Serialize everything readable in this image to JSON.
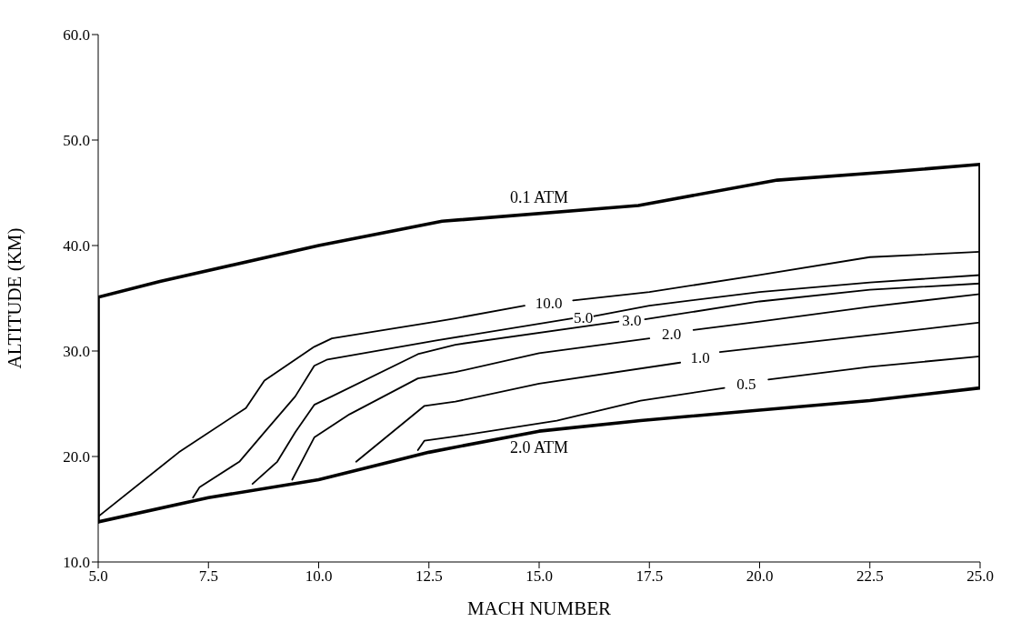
{
  "chart_data": {
    "type": "line",
    "xlabel": "MACH NUMBER",
    "ylabel": "ALTITUDE (KM)",
    "xlim": [
      5,
      25
    ],
    "ylim": [
      10,
      60
    ],
    "xticks": [
      {
        "value": 5,
        "label": "5.0"
      },
      {
        "value": 7.5,
        "label": "7.5"
      },
      {
        "value": 10,
        "label": "10.0"
      },
      {
        "value": 12.5,
        "label": "12.5"
      },
      {
        "value": 15,
        "label": "15.0"
      },
      {
        "value": 17.5,
        "label": "17.5"
      },
      {
        "value": 20,
        "label": "20.0"
      },
      {
        "value": 22.5,
        "label": "22.5"
      },
      {
        "value": 25,
        "label": "25.0"
      }
    ],
    "yticks": [
      {
        "value": 10,
        "label": "10.0"
      },
      {
        "value": 20,
        "label": "20.0"
      },
      {
        "value": 30,
        "label": "30.0"
      },
      {
        "value": 40,
        "label": "40.0"
      },
      {
        "value": 50,
        "label": "50.0"
      },
      {
        "value": 60,
        "label": "60.0"
      }
    ],
    "grid": false,
    "legend": false,
    "marker": "none",
    "line_style": "solid",
    "series": [
      {
        "name": "0.1 ATM",
        "color": "#000000",
        "x": [
          5,
          5,
          6.4,
          10,
          12.8,
          17.25,
          20.4,
          23,
          25
        ],
        "values": [
          13.8,
          35.1,
          36.6,
          40.0,
          42.3,
          43.8,
          46.2,
          47.0,
          47.7
        ]
      },
      {
        "name": "2.0 ATM",
        "color": "#000000",
        "x": [
          5,
          7.5,
          10,
          12.5,
          15,
          17.3,
          20,
          22.5,
          25,
          25
        ],
        "values": [
          13.8,
          16.1,
          17.8,
          20.4,
          22.4,
          23.4,
          24.4,
          25.3,
          26.5,
          47.7
        ]
      },
      {
        "name": "10.0",
        "color": "#000000",
        "x": [
          5,
          6.83,
          8.35,
          8.77,
          9.9,
          10.3,
          12.67,
          13.1,
          14.67,
          15.2,
          15.77,
          17.5,
          20,
          22.5,
          25
        ],
        "values": [
          14.3,
          20.4,
          24.6,
          27.2,
          30.4,
          31.2,
          32.8,
          33.1,
          34.3,
          null,
          34.8,
          35.6,
          37.2,
          38.9,
          39.4
        ]
      },
      {
        "name": "5.0",
        "color": "#000000",
        "x": [
          7.15,
          7.3,
          8.2,
          8.77,
          9.47,
          9.9,
          10.2,
          12.67,
          15.75,
          16,
          16.25,
          17.5,
          20,
          22.5,
          25
        ],
        "values": [
          16.1,
          17.1,
          19.5,
          22.3,
          25.7,
          28.6,
          29.2,
          31.0,
          33.1,
          null,
          33.3,
          34.3,
          35.6,
          36.5,
          37.2
        ]
      },
      {
        "name": "3.0",
        "color": "#000000",
        "x": [
          8.5,
          9.06,
          9.47,
          9.9,
          10.3,
          12.25,
          13.1,
          16.8,
          17.1,
          17.4,
          20,
          22.5,
          25
        ],
        "values": [
          17.4,
          19.5,
          22.3,
          24.9,
          25.7,
          29.7,
          30.6,
          32.8,
          null,
          33.0,
          34.7,
          35.8,
          36.4
        ]
      },
      {
        "name": "2.0",
        "color": "#000000",
        "x": [
          9.4,
          9.9,
          10.7,
          12.25,
          13.1,
          15,
          17.5,
          18,
          18.5,
          20,
          22.5,
          25
        ],
        "values": [
          17.8,
          21.8,
          24.0,
          27.4,
          28.0,
          29.8,
          31.2,
          null,
          32.0,
          32.8,
          34.2,
          35.4
        ]
      },
      {
        "name": "1.0",
        "color": "#000000",
        "x": [
          10.85,
          12.4,
          13.1,
          15,
          18.2,
          18.6,
          19.1,
          22.5,
          25
        ],
        "values": [
          19.5,
          24.8,
          25.2,
          26.9,
          28.9,
          null,
          29.9,
          31.5,
          32.7
        ]
      },
      {
        "name": "0.5",
        "color": "#000000",
        "x": [
          12.25,
          12.4,
          13.1,
          15.4,
          17.3,
          19.2,
          19.7,
          20.2,
          22.5,
          25
        ],
        "values": [
          20.6,
          21.5,
          21.9,
          23.4,
          25.3,
          26.5,
          null,
          27.3,
          28.5,
          29.5
        ]
      }
    ]
  }
}
